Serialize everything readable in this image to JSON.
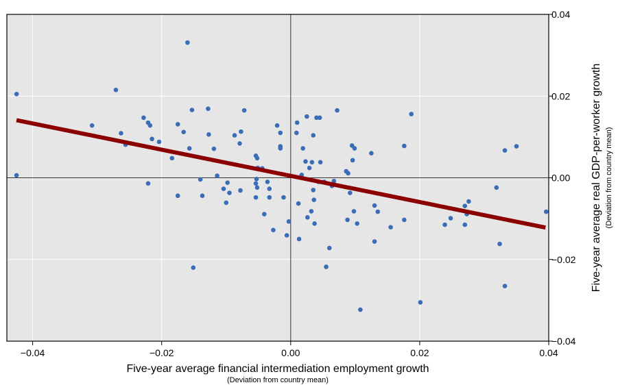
{
  "chart_data": {
    "type": "scatter",
    "xlabel": "Five-year average financial intermediation employment growth",
    "xlabel_sub": "(Deviation from country mean)",
    "ylabel": "Five-year average real GDP-per-worker growth",
    "ylabel_sub": "(Deviation from country mean)",
    "xlim": [
      -0.044,
      0.04
    ],
    "ylim": [
      -0.04,
      0.04
    ],
    "x_ticks": [
      -0.04,
      -0.02,
      0.0,
      0.02,
      0.04
    ],
    "x_tick_labels": [
      "−0.04",
      "−0.02",
      "0.00",
      "0.02",
      "0.04"
    ],
    "y_ticks": [
      -0.04,
      -0.02,
      0.0,
      0.02,
      0.04
    ],
    "y_tick_labels": [
      "−0.04",
      "−0.02",
      "0.00",
      "0.02",
      "0.04"
    ],
    "y_axis_position": "right",
    "grid": true,
    "background_color": "#e6e6e6",
    "point_color": "#3a6db5",
    "line_color": "#8b0000",
    "zero_lines": true,
    "fit_line": {
      "x": [
        -0.0425,
        0.0395
      ],
      "y": [
        0.0141,
        -0.0122
      ]
    },
    "points": [
      [
        -0.0425,
        0.0205
      ],
      [
        -0.0425,
        0.0006
      ],
      [
        -0.0271,
        0.0215
      ],
      [
        -0.0308,
        0.0128
      ],
      [
        -0.0263,
        0.0109
      ],
      [
        -0.0256,
        0.0081
      ],
      [
        -0.0228,
        0.0147
      ],
      [
        -0.0221,
        0.0135
      ],
      [
        -0.0218,
        0.0128
      ],
      [
        -0.0215,
        0.0095
      ],
      [
        -0.0221,
        -0.0014
      ],
      [
        -0.0204,
        0.0088
      ],
      [
        -0.0184,
        0.0048
      ],
      [
        -0.0175,
        0.0131
      ],
      [
        -0.0166,
        0.0112
      ],
      [
        -0.0175,
        -0.0044
      ],
      [
        -0.016,
        0.0331
      ],
      [
        -0.0153,
        0.0166
      ],
      [
        -0.0157,
        0.0072
      ],
      [
        -0.0151,
        -0.022
      ],
      [
        -0.014,
        -0.0004
      ],
      [
        -0.0137,
        -0.0044
      ],
      [
        -0.0128,
        0.0169
      ],
      [
        -0.0127,
        0.0106
      ],
      [
        -0.0119,
        0.0071
      ],
      [
        -0.0114,
        0.0005
      ],
      [
        -0.0104,
        -0.0027
      ],
      [
        -0.0098,
        -0.0012
      ],
      [
        -0.0095,
        -0.0037
      ],
      [
        -0.01,
        -0.0061
      ],
      [
        -0.0087,
        0.0104
      ],
      [
        -0.0079,
        0.0084
      ],
      [
        -0.0077,
        0.0113
      ],
      [
        -0.0072,
        0.0165
      ],
      [
        -0.0078,
        -0.0031
      ],
      [
        -0.0054,
        0.0054
      ],
      [
        -0.0052,
        0.0048
      ],
      [
        -0.0051,
        0.0024
      ],
      [
        -0.0054,
        -0.0014
      ],
      [
        -0.0054,
        -0.0048
      ],
      [
        -0.0053,
        -0.0003
      ],
      [
        -0.0052,
        -0.0024
      ],
      [
        -0.0044,
        0.0023
      ],
      [
        -0.0041,
        -0.0089
      ],
      [
        -0.0036,
        -0.001
      ],
      [
        -0.0033,
        -0.0048
      ],
      [
        -0.0033,
        -0.0027
      ],
      [
        -0.0027,
        -0.0128
      ],
      [
        -0.0021,
        0.0128
      ],
      [
        -0.0016,
        0.011
      ],
      [
        -0.0016,
        0.0077
      ],
      [
        -0.0016,
        0.0072
      ],
      [
        -0.0011,
        -0.0048
      ],
      [
        -0.0006,
        -0.0141
      ],
      [
        -0.0003,
        -0.0107
      ],
      [
        0.0009,
        0.011
      ],
      [
        0.001,
        0.0135
      ],
      [
        0.0012,
        -0.0063
      ],
      [
        0.0013,
        -0.015
      ],
      [
        0.0017,
        0.0007
      ],
      [
        0.0019,
        0.0072
      ],
      [
        0.0023,
        0.004
      ],
      [
        0.0025,
        0.015
      ],
      [
        0.0026,
        -0.0097
      ],
      [
        0.0029,
        0.0024
      ],
      [
        0.0032,
        -0.0082
      ],
      [
        0.0033,
        0.0038
      ],
      [
        0.0035,
        -0.003
      ],
      [
        0.0035,
        0.0104
      ],
      [
        0.0036,
        -0.0054
      ],
      [
        0.0037,
        -0.0112
      ],
      [
        0.004,
        0.0147
      ],
      [
        0.0043,
        -0.001
      ],
      [
        0.0045,
        0.0147
      ],
      [
        0.0046,
        0.0038
      ],
      [
        0.0052,
        -0.001
      ],
      [
        0.0055,
        -0.0218
      ],
      [
        0.006,
        -0.0172
      ],
      [
        0.0064,
        -0.002
      ],
      [
        0.0067,
        -0.0008
      ],
      [
        0.0072,
        0.0165
      ],
      [
        0.0086,
        0.0016
      ],
      [
        0.0088,
        -0.0103
      ],
      [
        0.0089,
        0.0011
      ],
      [
        0.0092,
        -0.0037
      ],
      [
        0.0095,
        0.0079
      ],
      [
        0.0096,
        0.0043
      ],
      [
        0.0098,
        -0.0082
      ],
      [
        0.0099,
        0.0072
      ],
      [
        0.0103,
        -0.0112
      ],
      [
        0.0108,
        -0.0323
      ],
      [
        0.0125,
        0.006
      ],
      [
        0.013,
        -0.0068
      ],
      [
        0.013,
        -0.0156
      ],
      [
        0.0135,
        -0.0083
      ],
      [
        0.0155,
        -0.0121
      ],
      [
        0.0176,
        0.0078
      ],
      [
        0.0176,
        -0.0103
      ],
      [
        0.0187,
        0.0156
      ],
      [
        0.0201,
        -0.0305
      ],
      [
        0.0239,
        -0.0115
      ],
      [
        0.0248,
        -0.0099
      ],
      [
        0.027,
        -0.0115
      ],
      [
        0.027,
        -0.0069
      ],
      [
        0.0273,
        -0.0089
      ],
      [
        0.0276,
        -0.0058
      ],
      [
        0.0319,
        -0.0024
      ],
      [
        0.0324,
        -0.0162
      ],
      [
        0.0332,
        0.0067
      ],
      [
        0.0332,
        -0.0265
      ],
      [
        0.035,
        0.0077
      ],
      [
        0.0396,
        -0.0083
      ]
    ]
  }
}
